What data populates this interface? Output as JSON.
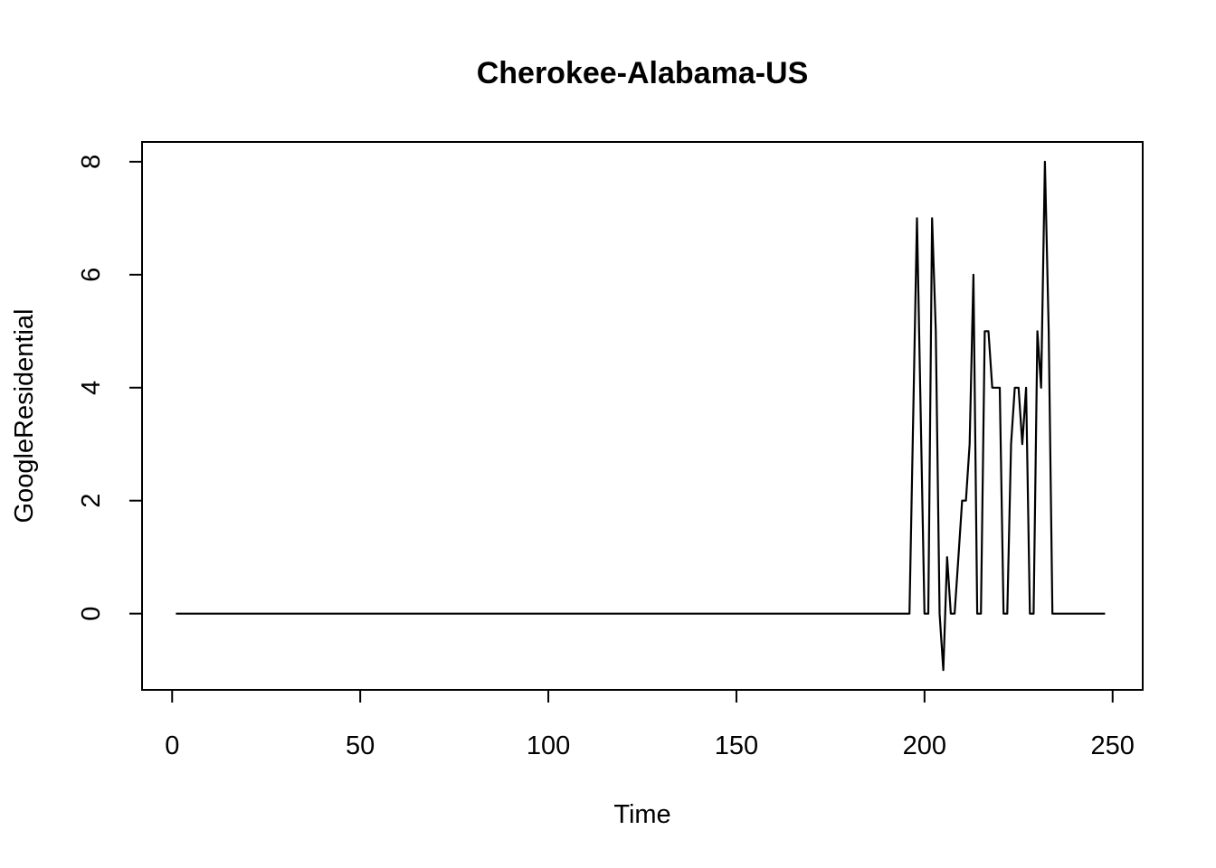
{
  "chart_data": {
    "type": "line",
    "title": "Cherokee-Alabama-US",
    "xlabel": "Time",
    "ylabel": "GoogleResidential",
    "xlim": [
      -8,
      258
    ],
    "ylim": [
      -1.35,
      8.35
    ],
    "x_ticks": [
      0,
      50,
      100,
      150,
      200,
      250
    ],
    "x_tick_labels": [
      "0",
      "50",
      "100",
      "150",
      "200",
      "250"
    ],
    "y_ticks": [
      0,
      2,
      4,
      6,
      8
    ],
    "y_tick_labels": [
      "0",
      "2",
      "4",
      "6",
      "8"
    ],
    "grid": false,
    "line_color": "#000000",
    "series": [
      {
        "x": [
          1,
          196,
          198,
          200,
          201,
          202,
          203,
          204,
          205,
          206,
          207,
          208,
          209,
          210,
          211,
          212,
          213,
          214,
          215,
          216,
          217,
          218,
          219,
          220,
          221,
          222,
          223,
          224,
          225,
          226,
          227,
          228,
          229,
          230,
          231,
          232,
          233,
          234,
          248
        ],
        "values": [
          0,
          0,
          7,
          0,
          0,
          7,
          5,
          0,
          -1,
          1,
          0,
          0,
          1,
          2,
          2,
          3,
          6,
          0,
          0,
          5,
          5,
          4,
          4,
          4,
          0,
          0,
          3,
          4,
          4,
          3,
          4,
          0,
          0,
          5,
          4,
          8,
          5,
          0,
          0
        ]
      }
    ]
  }
}
